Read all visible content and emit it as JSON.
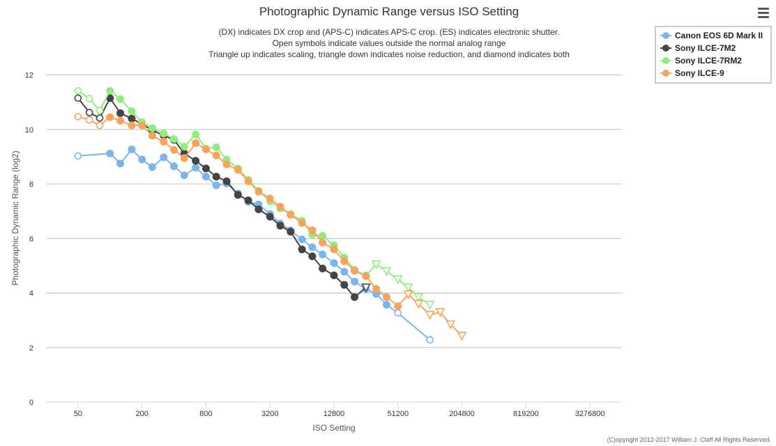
{
  "chart_data": {
    "type": "line",
    "title": "Photographic Dynamic Range versus ISO Setting",
    "subtitle_lines": [
      "(DX) indicates DX crop and (APS-C) indicates APS-C crop. (ES) indicates electronic shutter.",
      "Open symbols indicate values outside the normal analog range",
      "Triangle up indicates scaling, triangle down indicates noise reduction, and diamond indicates both"
    ],
    "xlabel": "ISO Setting",
    "ylabel": "Photographic Dynamic Range (log2)",
    "x_scale": "log2",
    "x_ticks": [
      50,
      200,
      800,
      3200,
      12800,
      51200,
      204800,
      819200,
      3276800
    ],
    "x_tick_labels": [
      "50",
      "200",
      "800",
      "3200",
      "12800",
      "51200",
      "204800",
      "819200",
      "3276800"
    ],
    "xlim": [
      25,
      6553600
    ],
    "ylim": [
      0,
      12.5
    ],
    "y_ticks": [
      0,
      2,
      4,
      6,
      8,
      10,
      12
    ],
    "grid": "horizontal",
    "legend_position": "top-right",
    "credit": "(C)opyright 2012-2017 William J. Claff All Rights Reserved.",
    "series": [
      {
        "name": "Canon EOS 6D Mark II",
        "color": "#7cb5ec",
        "points": [
          {
            "x": 50,
            "y": 9.03,
            "m": "open"
          },
          {
            "x": 100,
            "y": 9.12,
            "m": "filled"
          },
          {
            "x": 125,
            "y": 8.75,
            "m": "filled"
          },
          {
            "x": 160,
            "y": 9.27,
            "m": "filled"
          },
          {
            "x": 200,
            "y": 8.9,
            "m": "filled"
          },
          {
            "x": 250,
            "y": 8.62,
            "m": "filled"
          },
          {
            "x": 320,
            "y": 8.98,
            "m": "filled"
          },
          {
            "x": 400,
            "y": 8.65,
            "m": "filled"
          },
          {
            "x": 500,
            "y": 8.32,
            "m": "filled"
          },
          {
            "x": 640,
            "y": 8.6,
            "m": "filled"
          },
          {
            "x": 800,
            "y": 8.27,
            "m": "filled"
          },
          {
            "x": 1000,
            "y": 7.95,
            "m": "filled"
          },
          {
            "x": 1250,
            "y": 8.02,
            "m": "filled"
          },
          {
            "x": 1600,
            "y": 7.65,
            "m": "filled"
          },
          {
            "x": 2000,
            "y": 7.35,
            "m": "filled"
          },
          {
            "x": 2500,
            "y": 7.25,
            "m": "filled"
          },
          {
            "x": 3200,
            "y": 6.9,
            "m": "filled"
          },
          {
            "x": 4000,
            "y": 6.55,
            "m": "filled"
          },
          {
            "x": 5000,
            "y": 6.3,
            "m": "filled"
          },
          {
            "x": 6400,
            "y": 5.97,
            "m": "filled"
          },
          {
            "x": 8000,
            "y": 5.68,
            "m": "filled"
          },
          {
            "x": 10000,
            "y": 5.42,
            "m": "filled"
          },
          {
            "x": 12800,
            "y": 5.1,
            "m": "filled"
          },
          {
            "x": 16000,
            "y": 4.78,
            "m": "filled"
          },
          {
            "x": 20000,
            "y": 4.42,
            "m": "filled"
          },
          {
            "x": 25600,
            "y": 4.15,
            "m": "filled"
          },
          {
            "x": 32000,
            "y": 3.97,
            "m": "filled"
          },
          {
            "x": 40000,
            "y": 3.57,
            "m": "filled"
          },
          {
            "x": 51200,
            "y": 3.27,
            "m": "open"
          },
          {
            "x": 102400,
            "y": 2.28,
            "m": "open"
          }
        ]
      },
      {
        "name": "Sony ILCE-7M2",
        "color": "#434348",
        "points": [
          {
            "x": 50,
            "y": 11.15,
            "m": "open"
          },
          {
            "x": 64,
            "y": 10.62,
            "m": "open"
          },
          {
            "x": 80,
            "y": 10.42,
            "m": "open"
          },
          {
            "x": 100,
            "y": 11.15,
            "m": "filled"
          },
          {
            "x": 125,
            "y": 10.6,
            "m": "filled"
          },
          {
            "x": 160,
            "y": 10.4,
            "m": "filled"
          },
          {
            "x": 200,
            "y": 10.2,
            "m": "filled"
          },
          {
            "x": 250,
            "y": 9.97,
            "m": "filled"
          },
          {
            "x": 320,
            "y": 9.78,
            "m": "filled"
          },
          {
            "x": 400,
            "y": 9.62,
            "m": "filled"
          },
          {
            "x": 500,
            "y": 9.12,
            "m": "filled"
          },
          {
            "x": 640,
            "y": 8.85,
            "m": "filled"
          },
          {
            "x": 800,
            "y": 8.57,
            "m": "filled"
          },
          {
            "x": 1000,
            "y": 8.27,
            "m": "filled"
          },
          {
            "x": 1250,
            "y": 8.1,
            "m": "filled"
          },
          {
            "x": 1600,
            "y": 7.6,
            "m": "filled"
          },
          {
            "x": 2000,
            "y": 7.4,
            "m": "filled"
          },
          {
            "x": 2500,
            "y": 7.07,
            "m": "filled"
          },
          {
            "x": 3200,
            "y": 6.8,
            "m": "filled"
          },
          {
            "x": 4000,
            "y": 6.47,
            "m": "filled"
          },
          {
            "x": 5000,
            "y": 6.25,
            "m": "filled"
          },
          {
            "x": 6400,
            "y": 5.6,
            "m": "filled"
          },
          {
            "x": 8000,
            "y": 5.35,
            "m": "filled"
          },
          {
            "x": 10000,
            "y": 4.9,
            "m": "filled"
          },
          {
            "x": 12800,
            "y": 4.65,
            "m": "filled"
          },
          {
            "x": 16000,
            "y": 4.3,
            "m": "filled"
          },
          {
            "x": 20000,
            "y": 3.85,
            "m": "filled"
          },
          {
            "x": 25600,
            "y": 4.2,
            "m": "tri-down"
          }
        ]
      },
      {
        "name": "Sony ILCE-7RM2",
        "color": "#90ed7d",
        "points": [
          {
            "x": 50,
            "y": 11.42,
            "m": "open"
          },
          {
            "x": 64,
            "y": 11.13,
            "m": "open"
          },
          {
            "x": 80,
            "y": 10.7,
            "m": "open"
          },
          {
            "x": 100,
            "y": 11.42,
            "m": "filled"
          },
          {
            "x": 125,
            "y": 11.12,
            "m": "filled"
          },
          {
            "x": 160,
            "y": 10.67,
            "m": "filled"
          },
          {
            "x": 200,
            "y": 10.27,
            "m": "filled"
          },
          {
            "x": 250,
            "y": 10.05,
            "m": "filled"
          },
          {
            "x": 320,
            "y": 9.85,
            "m": "filled"
          },
          {
            "x": 400,
            "y": 9.65,
            "m": "filled"
          },
          {
            "x": 500,
            "y": 9.37,
            "m": "filled"
          },
          {
            "x": 640,
            "y": 9.82,
            "m": "filled"
          },
          {
            "x": 800,
            "y": 9.3,
            "m": "filled"
          },
          {
            "x": 1000,
            "y": 9.35,
            "m": "filled"
          },
          {
            "x": 1250,
            "y": 8.9,
            "m": "filled"
          },
          {
            "x": 1600,
            "y": 8.57,
            "m": "filled"
          },
          {
            "x": 2000,
            "y": 8.15,
            "m": "filled"
          },
          {
            "x": 2500,
            "y": 7.75,
            "m": "filled"
          },
          {
            "x": 3200,
            "y": 7.37,
            "m": "filled"
          },
          {
            "x": 4000,
            "y": 7.1,
            "m": "filled"
          },
          {
            "x": 5000,
            "y": 6.9,
            "m": "filled"
          },
          {
            "x": 6400,
            "y": 6.65,
            "m": "filled"
          },
          {
            "x": 8000,
            "y": 6.15,
            "m": "filled"
          },
          {
            "x": 10000,
            "y": 6.1,
            "m": "filled"
          },
          {
            "x": 12800,
            "y": 5.75,
            "m": "filled"
          },
          {
            "x": 16000,
            "y": 5.3,
            "m": "filled"
          },
          {
            "x": 20000,
            "y": 4.85,
            "m": "filled"
          },
          {
            "x": 25600,
            "y": 4.65,
            "m": "filled"
          },
          {
            "x": 32000,
            "y": 5.05,
            "m": "tri-down"
          },
          {
            "x": 40000,
            "y": 4.8,
            "m": "tri-down"
          },
          {
            "x": 51200,
            "y": 4.5,
            "m": "tri-down"
          },
          {
            "x": 64000,
            "y": 4.2,
            "m": "tri-down"
          },
          {
            "x": 80000,
            "y": 3.85,
            "m": "tri-down"
          },
          {
            "x": 102400,
            "y": 3.57,
            "m": "tri-down"
          }
        ]
      },
      {
        "name": "Sony ILCE-9",
        "color": "#f7a35c",
        "points": [
          {
            "x": 50,
            "y": 10.47,
            "m": "open"
          },
          {
            "x": 64,
            "y": 10.35,
            "m": "open"
          },
          {
            "x": 80,
            "y": 10.15,
            "m": "open"
          },
          {
            "x": 100,
            "y": 10.45,
            "m": "filled"
          },
          {
            "x": 125,
            "y": 10.32,
            "m": "filled"
          },
          {
            "x": 160,
            "y": 10.15,
            "m": "filled"
          },
          {
            "x": 200,
            "y": 10.15,
            "m": "filled"
          },
          {
            "x": 250,
            "y": 9.77,
            "m": "filled"
          },
          {
            "x": 320,
            "y": 9.55,
            "m": "filled"
          },
          {
            "x": 400,
            "y": 9.25,
            "m": "filled"
          },
          {
            "x": 500,
            "y": 8.95,
            "m": "filled"
          },
          {
            "x": 640,
            "y": 9.5,
            "m": "filled"
          },
          {
            "x": 800,
            "y": 9.27,
            "m": "filled"
          },
          {
            "x": 1000,
            "y": 9.05,
            "m": "filled"
          },
          {
            "x": 1250,
            "y": 8.72,
            "m": "filled"
          },
          {
            "x": 1600,
            "y": 8.52,
            "m": "filled"
          },
          {
            "x": 2000,
            "y": 8.1,
            "m": "filled"
          },
          {
            "x": 2500,
            "y": 7.72,
            "m": "filled"
          },
          {
            "x": 3200,
            "y": 7.47,
            "m": "filled"
          },
          {
            "x": 4000,
            "y": 7.17,
            "m": "filled"
          },
          {
            "x": 5000,
            "y": 6.87,
            "m": "filled"
          },
          {
            "x": 6400,
            "y": 6.57,
            "m": "filled"
          },
          {
            "x": 8000,
            "y": 6.3,
            "m": "filled"
          },
          {
            "x": 10000,
            "y": 5.85,
            "m": "filled"
          },
          {
            "x": 12800,
            "y": 5.6,
            "m": "filled"
          },
          {
            "x": 16000,
            "y": 5.17,
            "m": "filled"
          },
          {
            "x": 20000,
            "y": 4.82,
            "m": "filled"
          },
          {
            "x": 25600,
            "y": 4.62,
            "m": "filled"
          },
          {
            "x": 32000,
            "y": 4.15,
            "m": "filled"
          },
          {
            "x": 40000,
            "y": 3.85,
            "m": "filled"
          },
          {
            "x": 51200,
            "y": 3.52,
            "m": "filled"
          },
          {
            "x": 64000,
            "y": 3.95,
            "m": "tri-down"
          },
          {
            "x": 80000,
            "y": 3.6,
            "m": "tri-down"
          },
          {
            "x": 102400,
            "y": 3.2,
            "m": "tri-down"
          },
          {
            "x": 128000,
            "y": 3.3,
            "m": "tri-down"
          },
          {
            "x": 160000,
            "y": 2.85,
            "m": "tri-down"
          },
          {
            "x": 204800,
            "y": 2.43,
            "m": "tri-down"
          }
        ]
      }
    ]
  },
  "ui": {
    "menu_icon": "hamburger-menu-icon",
    "plot_bg": "#ffffff",
    "grid_color": "#c0c0c0",
    "axis_color": "#ccd6eb"
  }
}
